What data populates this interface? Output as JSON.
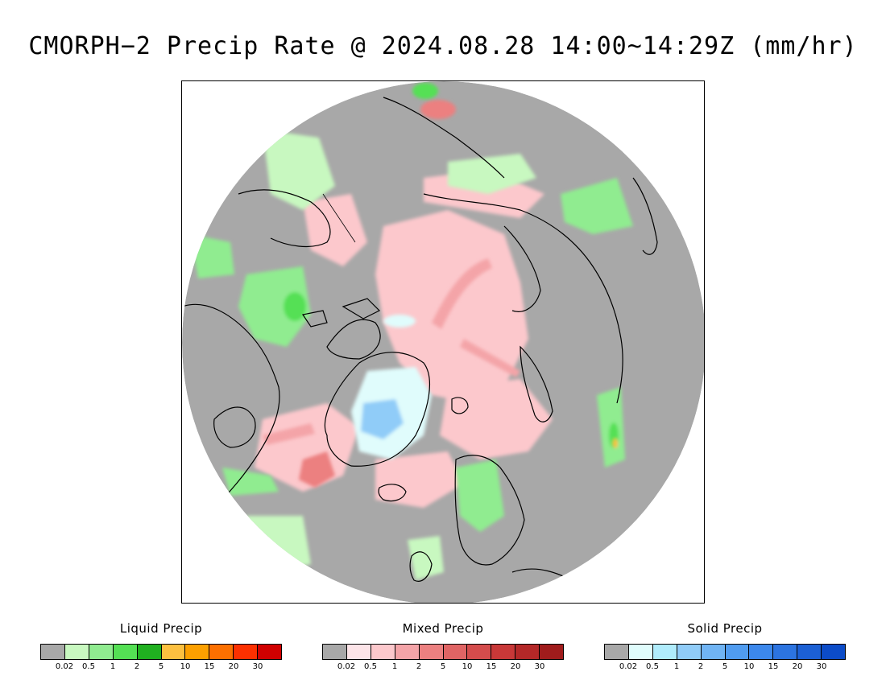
{
  "title": "CMORPH−2 Precip Rate @ 2024.08.28 14:00~14:29Z (mm/hr)",
  "map": {
    "projection": "north-polar-stereographic",
    "region": "Arctic",
    "colors": {
      "no_precip": "#a8a8a8",
      "coastline": "#000000",
      "frame": "#000000"
    }
  },
  "legends": [
    {
      "name": "liquid",
      "title": "Liquid Precip",
      "colors": [
        "#a8a8a8",
        "#c8f8c0",
        "#90ec90",
        "#54e054",
        "#20b020",
        "#fcc040",
        "#fca000",
        "#fc7000",
        "#fc3000",
        "#d00000"
      ],
      "ticks": [
        "0.02",
        "0.5",
        "1",
        "2",
        "5",
        "10",
        "15",
        "20",
        "30"
      ]
    },
    {
      "name": "mixed",
      "title": "Mixed Precip",
      "colors": [
        "#a8a8a8",
        "#fce4e8",
        "#fcc8cc",
        "#f4a4a8",
        "#ec8080",
        "#e06464",
        "#d44c4c",
        "#c83838",
        "#b42828",
        "#a01c1c"
      ],
      "ticks": [
        "0.02",
        "0.5",
        "1",
        "2",
        "5",
        "10",
        "15",
        "20",
        "30"
      ]
    },
    {
      "name": "solid",
      "title": "Solid Precip",
      "colors": [
        "#a8a8a8",
        "#e0fcfc",
        "#b0ecfc",
        "#90ccf8",
        "#70b4f4",
        "#509cf0",
        "#3c88ec",
        "#2c74e0",
        "#1c60d4",
        "#0c4cc8"
      ],
      "ticks": [
        "0.02",
        "0.5",
        "1",
        "2",
        "5",
        "10",
        "15",
        "20",
        "30"
      ]
    }
  ]
}
